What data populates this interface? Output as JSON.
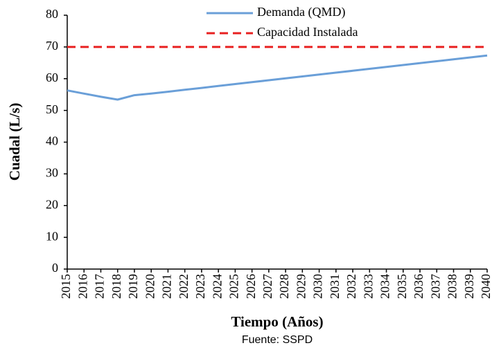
{
  "chart_data": {
    "type": "line",
    "x_label": "Tiempo (Años)",
    "y_label": "Cuadal (L/s)",
    "source": "Fuente: SSPD",
    "x": [
      2015,
      2016,
      2017,
      2018,
      2019,
      2020,
      2021,
      2022,
      2023,
      2024,
      2025,
      2026,
      2027,
      2028,
      2029,
      2030,
      2031,
      2032,
      2033,
      2034,
      2035,
      2036,
      2037,
      2038,
      2039,
      2040
    ],
    "series": [
      {
        "name": "Demanda (QMD)",
        "color": "#6a9fd8",
        "dash": false,
        "values": [
          56.3,
          55.3,
          54.3,
          53.4,
          54.8,
          55.3,
          55.9,
          56.5,
          57.1,
          57.7,
          58.3,
          58.9,
          59.5,
          60.1,
          60.7,
          61.3,
          61.9,
          62.5,
          63.1,
          63.7,
          64.3,
          64.9,
          65.5,
          66.1,
          66.7,
          67.3
        ]
      },
      {
        "name": "Capacidad Instalada",
        "color": "#e82020",
        "dash": true,
        "values": [
          70,
          70,
          70,
          70,
          70,
          70,
          70,
          70,
          70,
          70,
          70,
          70,
          70,
          70,
          70,
          70,
          70,
          70,
          70,
          70,
          70,
          70,
          70,
          70,
          70,
          70
        ]
      }
    ],
    "xlim": [
      2015,
      2040
    ],
    "xticks": [
      2015,
      2016,
      2017,
      2018,
      2019,
      2020,
      2021,
      2022,
      2023,
      2024,
      2025,
      2026,
      2027,
      2028,
      2029,
      2030,
      2031,
      2032,
      2033,
      2034,
      2035,
      2036,
      2037,
      2038,
      2039,
      2040
    ],
    "ylim": [
      0,
      80
    ],
    "yticks": [
      0,
      10,
      20,
      30,
      40,
      50,
      60,
      70,
      80
    ],
    "grid": false,
    "legend": "top"
  }
}
